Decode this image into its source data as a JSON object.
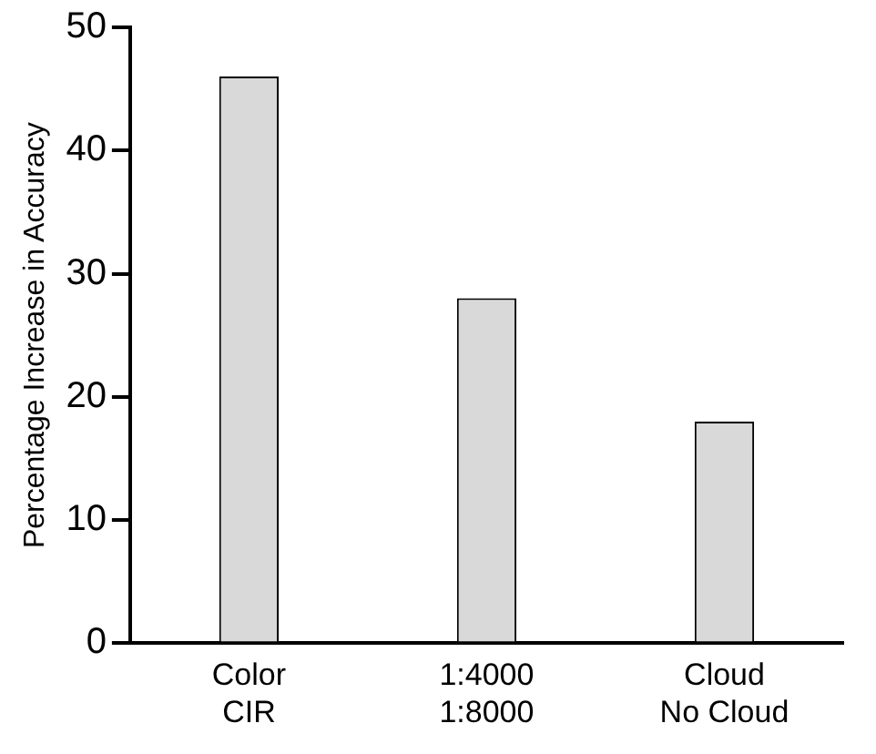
{
  "chart_data": {
    "type": "bar",
    "ylabel": "Percentage Increase in Accuracy",
    "categories": [
      "Color\nCIR",
      "1:4000\n1:8000",
      "Cloud\nNo Cloud"
    ],
    "values": [
      46,
      28,
      18
    ],
    "color": "#d9d9d9",
    "ylim": [
      0,
      50
    ],
    "yticks": [
      0,
      10,
      20,
      30,
      40,
      50
    ],
    "grid": false,
    "legend": false
  }
}
